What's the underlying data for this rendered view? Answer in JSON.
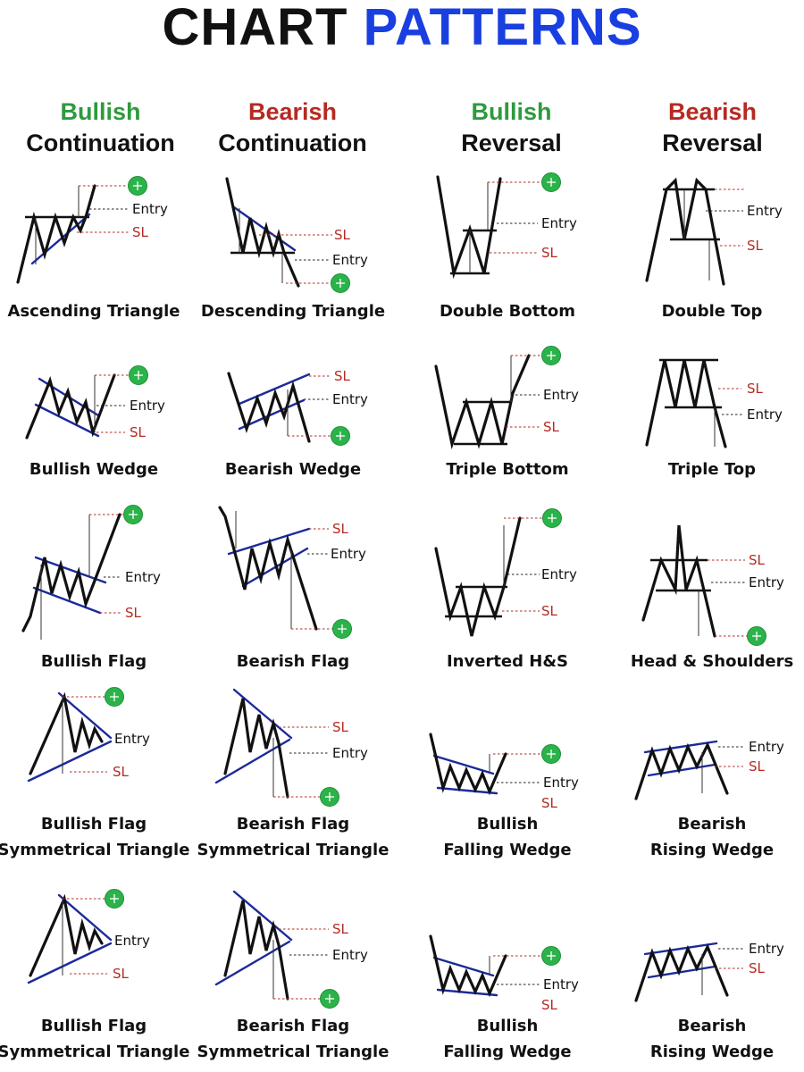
{
  "title": {
    "part1": "CHART",
    "part2": "PATTERNS"
  },
  "columns": [
    {
      "kind": "Bullish",
      "sub": "Continuation",
      "tone": "bull"
    },
    {
      "kind": "Bearish",
      "sub": "Continuation",
      "tone": "bear"
    },
    {
      "kind": "Bullish",
      "sub": "Reversal",
      "tone": "bull"
    },
    {
      "kind": "Bearish",
      "sub": "Reversal",
      "tone": "bear"
    }
  ],
  "labels": {
    "entry": "Entry",
    "sl": "SL"
  },
  "colors": {
    "bullish": "#2e9a3e",
    "bearish": "#b52a22",
    "accent_blue": "#1a3fe0",
    "trendline": "#1b2a9a",
    "target": "#2bb34a"
  },
  "patterns": [
    {
      "id": "ascending-triangle",
      "name": [
        "Ascending Triangle"
      ],
      "shape": "asc-triangle"
    },
    {
      "id": "descending-triangle",
      "name": [
        "Descending Triangle"
      ],
      "shape": "desc-triangle"
    },
    {
      "id": "double-bottom",
      "name": [
        "Double Bottom"
      ],
      "shape": "double-bottom"
    },
    {
      "id": "double-top",
      "name": [
        "Double Top"
      ],
      "shape": "double-top"
    },
    {
      "id": "bullish-wedge",
      "name": [
        "Bullish Wedge"
      ],
      "shape": "bull-wedge"
    },
    {
      "id": "bearish-wedge",
      "name": [
        "Bearish Wedge"
      ],
      "shape": "bear-wedge"
    },
    {
      "id": "triple-bottom",
      "name": [
        "Triple Bottom"
      ],
      "shape": "triple-bottom"
    },
    {
      "id": "triple-top",
      "name": [
        "Triple Top"
      ],
      "shape": "triple-top"
    },
    {
      "id": "bullish-flag",
      "name": [
        "Bullish Flag"
      ],
      "shape": "bull-flag"
    },
    {
      "id": "bearish-flag",
      "name": [
        "Bearish Flag"
      ],
      "shape": "bear-flag"
    },
    {
      "id": "inverted-hs",
      "name": [
        "Inverted H&S"
      ],
      "shape": "inv-hs"
    },
    {
      "id": "head-shoulders",
      "name": [
        "Head & Shoulders"
      ],
      "shape": "hs"
    },
    {
      "id": "bullish-flag-sym-1",
      "name": [
        "Bullish Flag",
        "Symmetrical Triangle"
      ],
      "shape": "bull-sym"
    },
    {
      "id": "bearish-flag-sym-1",
      "name": [
        "Bearish Flag",
        "Symmetrical Triangle"
      ],
      "shape": "bear-sym"
    },
    {
      "id": "bullish-falling-wedge-1",
      "name": [
        "Bullish",
        "Falling Wedge"
      ],
      "shape": "falling-wedge"
    },
    {
      "id": "bearish-rising-wedge-1",
      "name": [
        "Bearish",
        "Rising Wedge"
      ],
      "shape": "rising-wedge"
    },
    {
      "id": "bullish-flag-sym-2",
      "name": [
        "Bullish Flag",
        "Symmetrical Triangle"
      ],
      "shape": "bull-sym"
    },
    {
      "id": "bearish-flag-sym-2",
      "name": [
        "Bearish Flag",
        "Symmetrical Triangle"
      ],
      "shape": "bear-sym"
    },
    {
      "id": "bullish-falling-wedge-2",
      "name": [
        "Bullish",
        "Falling Wedge"
      ],
      "shape": "falling-wedge"
    },
    {
      "id": "bearish-rising-wedge-2",
      "name": [
        "Bearish",
        "Rising Wedge"
      ],
      "shape": "rising-wedge"
    }
  ]
}
